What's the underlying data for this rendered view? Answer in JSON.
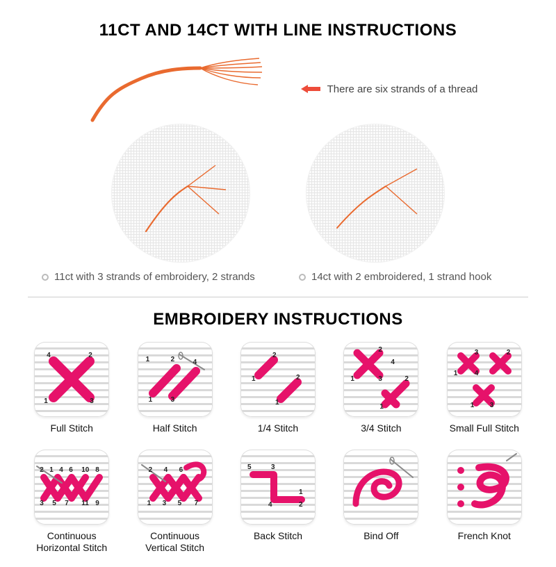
{
  "section1": {
    "title": "11CT AND 14CT WITH LINE INSTRUCTIONS",
    "note": "There are six strands of a thread",
    "caption_left": "11ct with 3 strands of embroidery, 2 strands",
    "caption_right": "14ct with 2 embroidered, 1 strand hook",
    "thread_color": "#e96a2f",
    "arrow_color": "#ed4c3a",
    "bullet_border": "#bbbbbb",
    "text_color": "#555555",
    "fabric_grid_color": "#e6e6e6",
    "fabric_bg": "#fbfbfb"
  },
  "divider_color": "#cccccc",
  "section2": {
    "title": "EMBROIDERY INSTRUCTIONS",
    "stitch_color": "#e6126a",
    "needle_color": "#8a8a8a",
    "tile_bg_stripe_light": "#ffffff",
    "tile_bg_stripe_dark": "#d9d9d9",
    "num_color": "#222222",
    "label_fontsize": 14,
    "stitches": [
      {
        "label": "Full Stitch",
        "nums": [
          "4",
          "2",
          "1",
          "3"
        ]
      },
      {
        "label": "Half Stitch",
        "nums": [
          "1",
          "2",
          "4",
          "1",
          "3"
        ]
      },
      {
        "label": "1/4 Stitch",
        "nums": [
          "2",
          "1",
          "2",
          "1"
        ]
      },
      {
        "label": "3/4 Stitch",
        "nums": [
          "2",
          "4",
          "1",
          "3",
          "2",
          "1"
        ]
      },
      {
        "label": "Small Full Stitch",
        "nums": [
          "3",
          "2",
          "1",
          "4",
          "1",
          "3"
        ]
      },
      {
        "label": "Continuous\nHorizontal Stitch",
        "nums": [
          "2",
          "1",
          "4",
          "6",
          "10",
          "8",
          "3",
          "5",
          "7",
          "11",
          "9"
        ]
      },
      {
        "label": "Continuous\nVertical Stitch",
        "nums": [
          "2",
          "4",
          "6",
          "1",
          "3",
          "5",
          "7"
        ]
      },
      {
        "label": "Back Stitch",
        "nums": [
          "5",
          "3",
          "1",
          "4",
          "2"
        ]
      },
      {
        "label": "Bind Off",
        "nums": []
      },
      {
        "label": "French Knot",
        "nums": []
      }
    ]
  }
}
